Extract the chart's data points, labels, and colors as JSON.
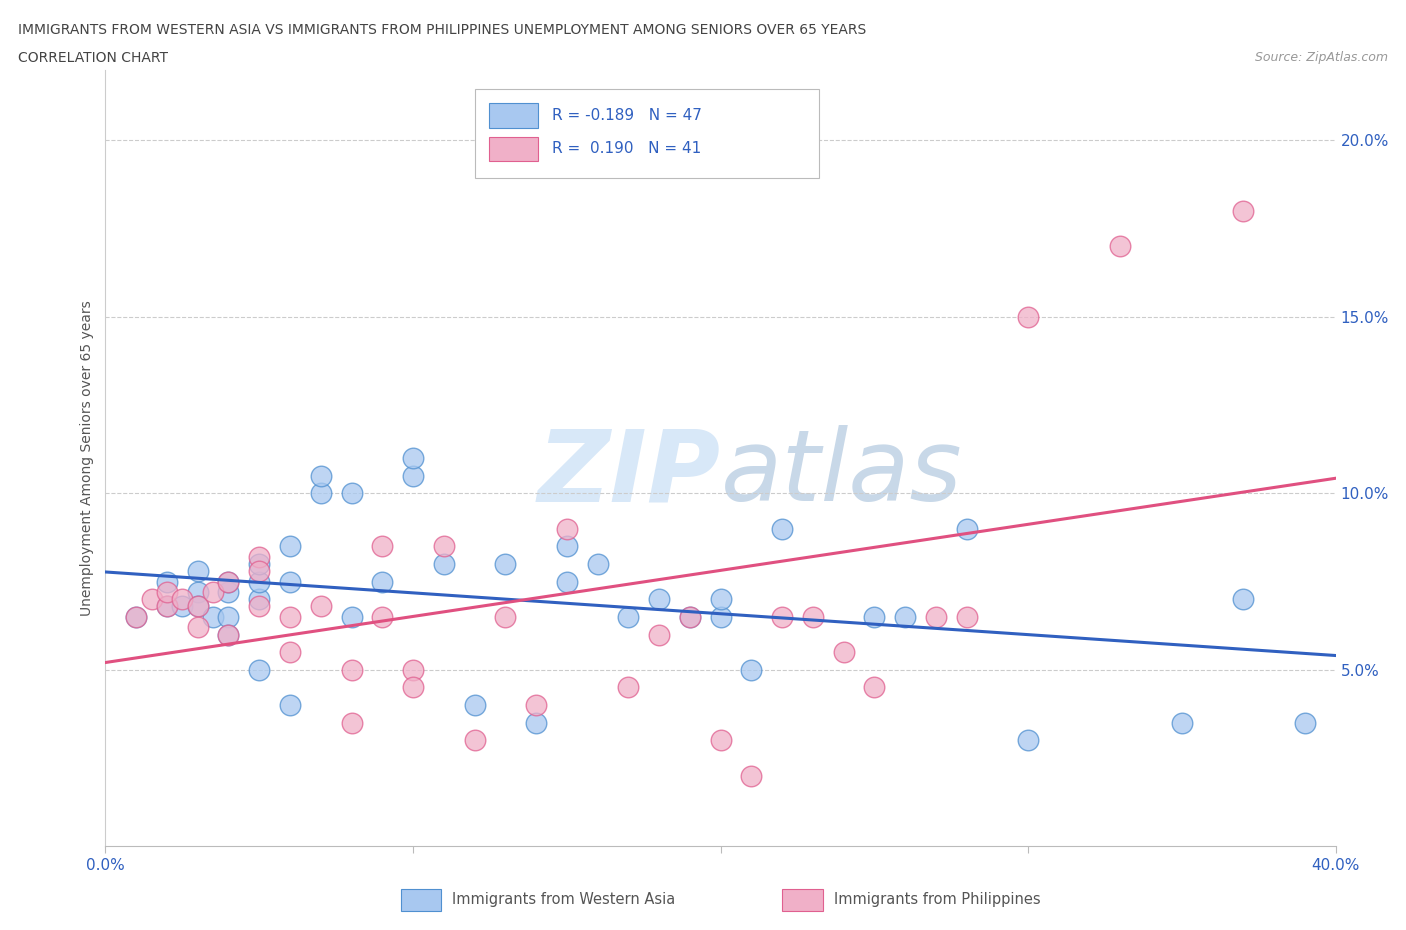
{
  "title_line1": "IMMIGRANTS FROM WESTERN ASIA VS IMMIGRANTS FROM PHILIPPINES UNEMPLOYMENT AMONG SENIORS OVER 65 YEARS",
  "title_line2": "CORRELATION CHART",
  "source_text": "Source: ZipAtlas.com",
  "ylabel": "Unemployment Among Seniors over 65 years",
  "xlim": [
    0.0,
    0.4
  ],
  "ylim": [
    0.0,
    0.22
  ],
  "ytick_vals": [
    0.05,
    0.1,
    0.15,
    0.2
  ],
  "ytick_labels": [
    "5.0%",
    "10.0%",
    "15.0%",
    "20.0%"
  ],
  "xtick_vals": [
    0.0,
    0.1,
    0.2,
    0.3,
    0.4
  ],
  "western_asia_R": -0.189,
  "western_asia_N": 47,
  "philippines_R": 0.19,
  "philippines_N": 41,
  "color_wa_fill": "#A8C8F0",
  "color_wa_edge": "#5090D0",
  "color_ph_fill": "#F0B0C8",
  "color_ph_edge": "#E06090",
  "color_line_wa": "#3060C0",
  "color_line_ph": "#E05080",
  "legend_text_color": "#3060C0",
  "watermark_color": "#D8E8F8",
  "wa_x": [
    0.01,
    0.02,
    0.02,
    0.025,
    0.03,
    0.03,
    0.03,
    0.035,
    0.04,
    0.04,
    0.04,
    0.04,
    0.05,
    0.05,
    0.05,
    0.05,
    0.06,
    0.06,
    0.06,
    0.07,
    0.07,
    0.08,
    0.08,
    0.09,
    0.1,
    0.1,
    0.11,
    0.12,
    0.13,
    0.14,
    0.15,
    0.15,
    0.16,
    0.17,
    0.18,
    0.19,
    0.2,
    0.2,
    0.21,
    0.22,
    0.25,
    0.26,
    0.28,
    0.3,
    0.35,
    0.37,
    0.39
  ],
  "wa_y": [
    0.065,
    0.068,
    0.075,
    0.068,
    0.072,
    0.078,
    0.068,
    0.065,
    0.072,
    0.075,
    0.065,
    0.06,
    0.07,
    0.075,
    0.08,
    0.05,
    0.04,
    0.075,
    0.085,
    0.1,
    0.105,
    0.065,
    0.1,
    0.075,
    0.105,
    0.11,
    0.08,
    0.04,
    0.08,
    0.035,
    0.085,
    0.075,
    0.08,
    0.065,
    0.07,
    0.065,
    0.065,
    0.07,
    0.05,
    0.09,
    0.065,
    0.065,
    0.09,
    0.03,
    0.035,
    0.07,
    0.035
  ],
  "ph_x": [
    0.01,
    0.015,
    0.02,
    0.02,
    0.025,
    0.03,
    0.03,
    0.035,
    0.04,
    0.04,
    0.05,
    0.05,
    0.05,
    0.06,
    0.06,
    0.07,
    0.08,
    0.08,
    0.09,
    0.09,
    0.1,
    0.1,
    0.11,
    0.12,
    0.13,
    0.14,
    0.15,
    0.17,
    0.18,
    0.19,
    0.2,
    0.21,
    0.22,
    0.23,
    0.24,
    0.25,
    0.27,
    0.28,
    0.3,
    0.33,
    0.37
  ],
  "ph_y": [
    0.065,
    0.07,
    0.068,
    0.072,
    0.07,
    0.068,
    0.062,
    0.072,
    0.075,
    0.06,
    0.082,
    0.078,
    0.068,
    0.055,
    0.065,
    0.068,
    0.05,
    0.035,
    0.065,
    0.085,
    0.05,
    0.045,
    0.085,
    0.03,
    0.065,
    0.04,
    0.09,
    0.045,
    0.06,
    0.065,
    0.03,
    0.02,
    0.065,
    0.065,
    0.055,
    0.045,
    0.065,
    0.065,
    0.15,
    0.17,
    0.18
  ]
}
